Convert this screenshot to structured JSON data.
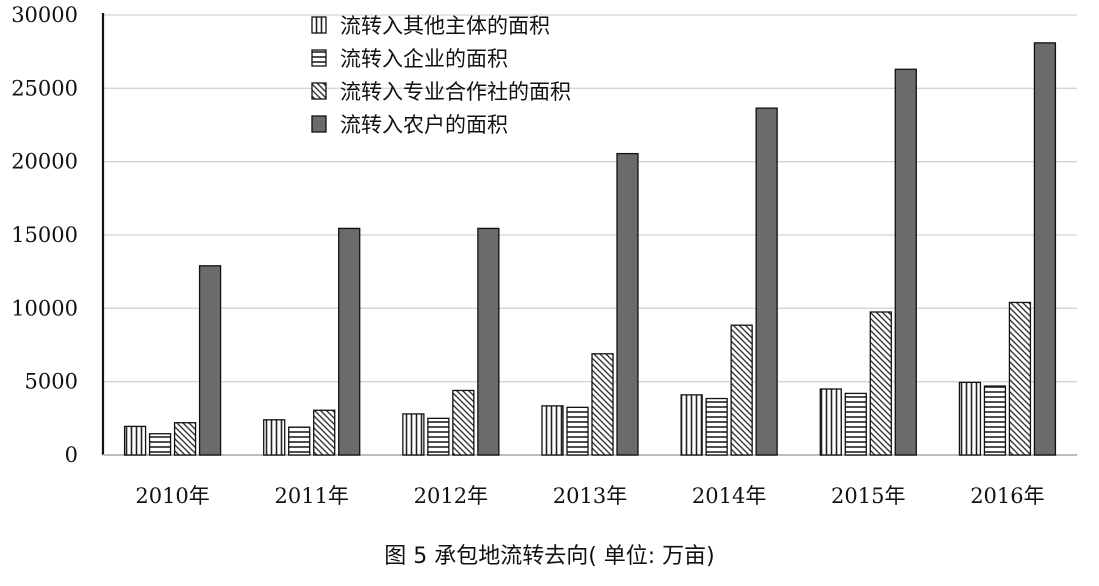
{
  "caption": "图 5 承包地流转去向( 单位: 万亩)",
  "chart_data": {
    "type": "bar",
    "title": "",
    "xlabel": "",
    "ylabel": "",
    "ylim": [
      0,
      30000
    ],
    "yticks": [
      0,
      5000,
      10000,
      15000,
      20000,
      25000,
      30000
    ],
    "grid": true,
    "legend_position": "top-center",
    "categories": [
      "2010年",
      "2011年",
      "2012年",
      "2013年",
      "2014年",
      "2015年",
      "2016年"
    ],
    "series": [
      {
        "name": "流转入其他主体的面积",
        "pattern": "vertical-hatch",
        "color": "#ffffff",
        "values": [
          1950,
          2400,
          2800,
          3350,
          4100,
          4500,
          4950
        ]
      },
      {
        "name": "流转入企业的面积",
        "pattern": "horizontal-hatch",
        "color": "#ffffff",
        "values": [
          1450,
          1900,
          2500,
          3250,
          3850,
          4200,
          4700
        ]
      },
      {
        "name": "流转入专业合作社的面积",
        "pattern": "diagonal-hatch",
        "color": "#ffffff",
        "values": [
          2200,
          3050,
          4400,
          6900,
          8850,
          9750,
          10400
        ]
      },
      {
        "name": "流转入农户的面积",
        "pattern": "solid",
        "color": "#6b6b6b",
        "values": [
          12900,
          15450,
          15450,
          20550,
          23650,
          26300,
          28100
        ]
      }
    ]
  }
}
